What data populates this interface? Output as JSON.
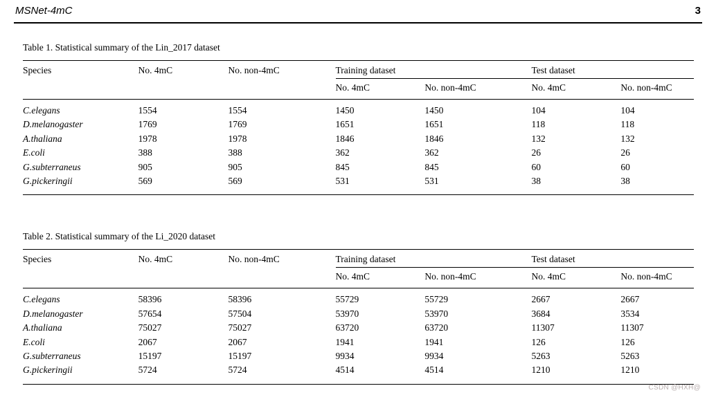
{
  "page": {
    "header_title": "MSNet-4mC",
    "page_number": "3",
    "watermark": "CSDN @HXH@",
    "watermark_color": "#b9aeae",
    "text_color": "#000000",
    "background_color": "#ffffff"
  },
  "tables": [
    {
      "caption": "Table 1. Statistical summary of the Lin_2017 dataset",
      "header_row1": [
        "Species",
        "No. 4mC",
        "No. non-4mC",
        "Training dataset",
        "Test dataset"
      ],
      "header_row2": [
        "No. 4mC",
        "No. non-4mC",
        "No. 4mC",
        "No. non-4mC"
      ],
      "rows": [
        {
          "species": "C.elegans",
          "values": [
            "1554",
            "1554",
            "1450",
            "1450",
            "104",
            "104"
          ]
        },
        {
          "species": "D.melanogaster",
          "values": [
            "1769",
            "1769",
            "1651",
            "1651",
            "118",
            "118"
          ]
        },
        {
          "species": "A.thaliana",
          "values": [
            "1978",
            "1978",
            "1846",
            "1846",
            "132",
            "132"
          ]
        },
        {
          "species": "E.coli",
          "values": [
            "388",
            "388",
            "362",
            "362",
            "26",
            "26"
          ]
        },
        {
          "species": "G.subterraneus",
          "values": [
            "905",
            "905",
            "845",
            "845",
            "60",
            "60"
          ]
        },
        {
          "species": "G.pickeringii",
          "values": [
            "569",
            "569",
            "531",
            "531",
            "38",
            "38"
          ]
        }
      ]
    },
    {
      "caption": "Table 2. Statistical summary of the Li_2020 dataset",
      "header_row1": [
        "Species",
        "No. 4mC",
        "No. non-4mC",
        "Training dataset",
        "Test dataset"
      ],
      "header_row2": [
        "No. 4mC",
        "No. non-4mC",
        "No. 4mC",
        "No. non-4mC"
      ],
      "rows": [
        {
          "species": "C.elegans",
          "values": [
            "58396",
            "58396",
            "55729",
            "55729",
            "2667",
            "2667"
          ]
        },
        {
          "species": "D.melanogaster",
          "values": [
            "57654",
            "57504",
            "53970",
            "53970",
            "3684",
            "3534"
          ]
        },
        {
          "species": "A.thaliana",
          "values": [
            "75027",
            "75027",
            "63720",
            "63720",
            "11307",
            "11307"
          ]
        },
        {
          "species": "E.coli",
          "values": [
            "2067",
            "2067",
            "1941",
            "1941",
            "126",
            "126"
          ]
        },
        {
          "species": "G.subterraneus",
          "values": [
            "15197",
            "15197",
            "9934",
            "9934",
            "5263",
            "5263"
          ]
        },
        {
          "species": "G.pickeringii",
          "values": [
            "5724",
            "5724",
            "4514",
            "4514",
            "1210",
            "1210"
          ]
        }
      ]
    }
  ]
}
